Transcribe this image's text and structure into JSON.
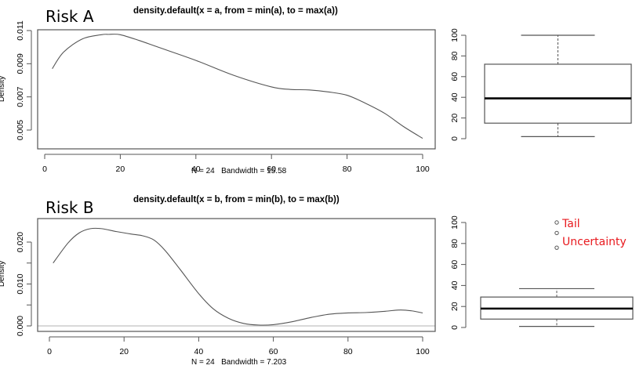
{
  "panels": {
    "risk_a": {
      "label": "Risk A",
      "density_title": "density.default(x = a, from = min(a), to = max(a))",
      "density_ylabel": "Density",
      "density_sub": "N = 24   Bandwidth = 15.58"
    },
    "risk_b": {
      "label": "Risk B",
      "density_title": "density.default(x = b, from = min(b), to = max(b))",
      "density_ylabel": "Density",
      "density_sub": "N = 24   Bandwidth = 7.203",
      "annotations": [
        "Tail",
        "Uncertainty"
      ]
    }
  },
  "colors": {
    "curve": "#555555",
    "frame": "#555555",
    "baseline": "#d9d9d9",
    "annotation": "#e8191e"
  },
  "chart_data": [
    {
      "type": "line",
      "id": "density_a",
      "title": "density.default(x = a, from = min(a), to = max(a))",
      "xlabel": "N = 24   Bandwidth = 15.58",
      "ylabel": "Density",
      "xlim": [
        0,
        100
      ],
      "ylim": [
        0.0045,
        0.011
      ],
      "x_ticks": [
        0,
        20,
        40,
        60,
        80,
        100
      ],
      "y_ticks": [
        0.005,
        0.007,
        0.009,
        0.011
      ],
      "y_tick_labels": [
        "0.005",
        "0.007",
        "0.009",
        "0.011"
      ],
      "x": [
        2,
        5,
        10,
        15,
        17,
        20,
        25,
        30,
        40,
        50,
        60,
        65,
        70,
        75,
        80,
        85,
        90,
        95,
        100
      ],
      "y": [
        0.0087,
        0.0097,
        0.0105,
        0.01075,
        0.01077,
        0.01075,
        0.0104,
        0.01,
        0.0092,
        0.0083,
        0.0076,
        0.00745,
        0.00742,
        0.0073,
        0.0071,
        0.0066,
        0.006,
        0.0052,
        0.0045
      ]
    },
    {
      "type": "boxplot",
      "id": "box_a",
      "ylim": [
        0,
        100
      ],
      "y_ticks": [
        0,
        20,
        40,
        60,
        80,
        100
      ],
      "whisker_low": 2,
      "q1": 15,
      "median": 39,
      "q3": 72,
      "whisker_high": 100,
      "outliers": []
    },
    {
      "type": "line",
      "id": "density_b",
      "title": "density.default(x = b, from = min(b), to = max(b))",
      "xlabel": "N = 24   Bandwidth = 7.203",
      "ylabel": "Density",
      "xlim": [
        0,
        100
      ],
      "ylim": [
        0,
        0.0235
      ],
      "x_ticks": [
        0,
        20,
        40,
        60,
        80,
        100
      ],
      "y_ticks": [
        0.0,
        0.005,
        0.01,
        0.015,
        0.02
      ],
      "y_tick_labels": [
        "0.000",
        "",
        "0.010",
        "",
        "0.020"
      ],
      "x": [
        1,
        5,
        8,
        11,
        14,
        18,
        22,
        25,
        28,
        31,
        35,
        40,
        44,
        48,
        52,
        56,
        60,
        65,
        70,
        75,
        80,
        85,
        90,
        94,
        97,
        100
      ],
      "y": [
        0.015,
        0.0198,
        0.0222,
        0.0232,
        0.0232,
        0.0225,
        0.0219,
        0.0215,
        0.0205,
        0.018,
        0.0135,
        0.0077,
        0.004,
        0.0018,
        0.0006,
        0.0002,
        0.0003,
        0.001,
        0.002,
        0.0028,
        0.0031,
        0.0032,
        0.0035,
        0.0038,
        0.0036,
        0.0031
      ]
    },
    {
      "type": "boxplot",
      "id": "box_b",
      "ylim": [
        0,
        100
      ],
      "y_ticks": [
        0,
        20,
        40,
        60,
        80,
        100
      ],
      "whisker_low": 1,
      "q1": 8,
      "median": 18,
      "q3": 29,
      "whisker_high": 37,
      "outliers": [
        76,
        90,
        100
      ],
      "annotations": [
        "Tail",
        "Uncertainty"
      ]
    }
  ]
}
